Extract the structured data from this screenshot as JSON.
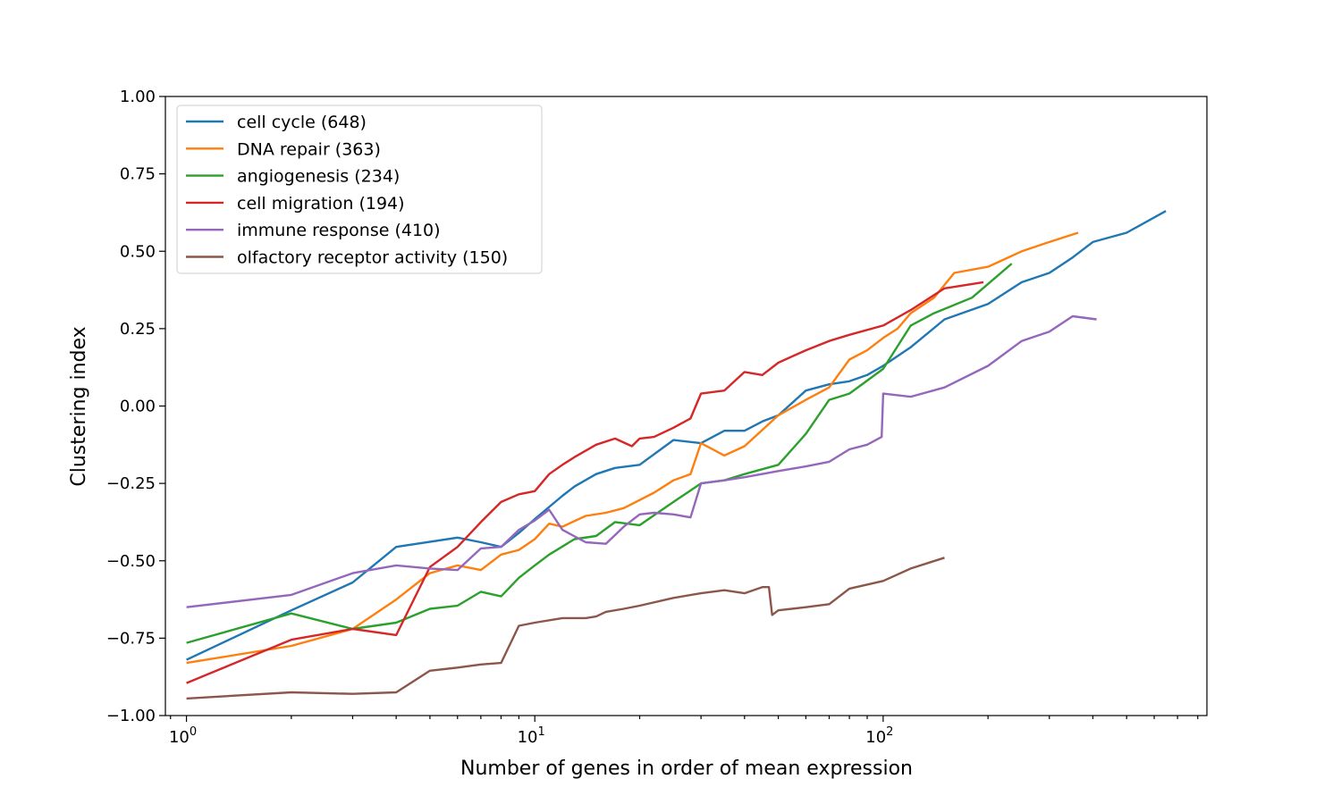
{
  "chart_data": {
    "type": "line",
    "title": "",
    "xlabel": "Number of genes in order of mean expression",
    "ylabel": "Clustering index",
    "xscale": "log",
    "xlim": [
      0.87,
      850
    ],
    "ylim": [
      -1.0,
      1.0
    ],
    "xticks": [
      {
        "value": 1,
        "base": "10",
        "exp": "0"
      },
      {
        "value": 10,
        "base": "10",
        "exp": "1"
      },
      {
        "value": 100,
        "base": "10",
        "exp": "2"
      }
    ],
    "yticks": [
      {
        "value": 1.0,
        "label": "1.00"
      },
      {
        "value": 0.75,
        "label": "0.75"
      },
      {
        "value": 0.5,
        "label": "0.50"
      },
      {
        "value": 0.25,
        "label": "0.25"
      },
      {
        "value": 0.0,
        "label": "0.00"
      },
      {
        "value": -0.25,
        "label": "−0.25"
      },
      {
        "value": -0.5,
        "label": "−0.50"
      },
      {
        "value": -0.75,
        "label": "−0.75"
      },
      {
        "value": -1.0,
        "label": "−1.00"
      }
    ],
    "grid": false,
    "legend_position": "upper-left",
    "series": [
      {
        "name": "cell cycle (648)",
        "color": "#1f77b4",
        "x": [
          1,
          2,
          3,
          4,
          6,
          7,
          8,
          9,
          10,
          12,
          13,
          15,
          17,
          20,
          25,
          30,
          35,
          40,
          45,
          50,
          60,
          70,
          80,
          90,
          100,
          120,
          150,
          200,
          250,
          300,
          350,
          400,
          500,
          648
        ],
        "y": [
          -0.82,
          -0.66,
          -0.57,
          -0.455,
          -0.425,
          -0.44,
          -0.455,
          -0.41,
          -0.365,
          -0.29,
          -0.26,
          -0.22,
          -0.2,
          -0.19,
          -0.11,
          -0.12,
          -0.08,
          -0.08,
          -0.05,
          -0.03,
          0.05,
          0.07,
          0.08,
          0.1,
          0.13,
          0.19,
          0.28,
          0.33,
          0.4,
          0.43,
          0.48,
          0.53,
          0.56,
          0.63
        ]
      },
      {
        "name": "DNA repair (363)",
        "color": "#ff7f0e",
        "x": [
          1,
          2,
          3,
          4,
          5,
          6,
          7,
          8,
          9,
          10,
          11,
          12,
          14,
          16,
          18,
          22,
          25,
          28,
          30,
          35,
          40,
          50,
          60,
          70,
          80,
          90,
          100,
          110,
          120,
          140,
          160,
          200,
          250,
          300,
          363
        ],
        "y": [
          -0.83,
          -0.775,
          -0.72,
          -0.625,
          -0.54,
          -0.515,
          -0.53,
          -0.48,
          -0.465,
          -0.43,
          -0.38,
          -0.39,
          -0.355,
          -0.345,
          -0.33,
          -0.28,
          -0.24,
          -0.22,
          -0.12,
          -0.16,
          -0.13,
          -0.03,
          0.02,
          0.06,
          0.15,
          0.18,
          0.22,
          0.25,
          0.3,
          0.35,
          0.43,
          0.45,
          0.5,
          0.53,
          0.56
        ]
      },
      {
        "name": "angiogenesis (234)",
        "color": "#2ca02c",
        "x": [
          1,
          2,
          3,
          4,
          5,
          6,
          7,
          8,
          9,
          10,
          11,
          13,
          15,
          17,
          20,
          25,
          30,
          35,
          40,
          50,
          60,
          70,
          80,
          100,
          120,
          140,
          180,
          234
        ],
        "y": [
          -0.765,
          -0.67,
          -0.72,
          -0.7,
          -0.655,
          -0.645,
          -0.6,
          -0.615,
          -0.555,
          -0.515,
          -0.48,
          -0.43,
          -0.42,
          -0.375,
          -0.385,
          -0.31,
          -0.25,
          -0.24,
          -0.22,
          -0.19,
          -0.09,
          0.02,
          0.04,
          0.12,
          0.26,
          0.3,
          0.35,
          0.46
        ]
      },
      {
        "name": "cell migration (194)",
        "color": "#d62728",
        "x": [
          1,
          2,
          3,
          4,
          5,
          6,
          7,
          8,
          9,
          10,
          11,
          12,
          13,
          15,
          17,
          19,
          20,
          22,
          25,
          28,
          30,
          35,
          40,
          45,
          50,
          60,
          70,
          80,
          100,
          120,
          150,
          194
        ],
        "y": [
          -0.895,
          -0.755,
          -0.72,
          -0.74,
          -0.52,
          -0.455,
          -0.375,
          -0.31,
          -0.285,
          -0.275,
          -0.22,
          -0.19,
          -0.165,
          -0.125,
          -0.105,
          -0.13,
          -0.105,
          -0.1,
          -0.07,
          -0.04,
          0.04,
          0.05,
          0.11,
          0.1,
          0.14,
          0.18,
          0.21,
          0.23,
          0.26,
          0.31,
          0.38,
          0.4
        ]
      },
      {
        "name": "immune response (410)",
        "color": "#9467bd",
        "x": [
          1,
          2,
          3,
          4,
          5,
          6,
          7,
          8,
          9,
          10,
          11,
          12,
          14,
          16,
          18,
          20,
          22,
          25,
          28,
          30,
          35,
          40,
          50,
          60,
          70,
          80,
          90,
          99,
          100,
          120,
          150,
          200,
          250,
          300,
          350,
          410
        ],
        "y": [
          -0.65,
          -0.61,
          -0.54,
          -0.515,
          -0.525,
          -0.53,
          -0.46,
          -0.455,
          -0.4,
          -0.37,
          -0.335,
          -0.4,
          -0.44,
          -0.445,
          -0.39,
          -0.35,
          -0.345,
          -0.35,
          -0.36,
          -0.25,
          -0.24,
          -0.23,
          -0.21,
          -0.195,
          -0.18,
          -0.14,
          -0.125,
          -0.1,
          0.04,
          0.03,
          0.06,
          0.13,
          0.21,
          0.24,
          0.29,
          0.28
        ]
      },
      {
        "name": "olfactory receptor activity (150)",
        "color": "#8c564b",
        "x": [
          1,
          2,
          3,
          4,
          5,
          6,
          7,
          8,
          9,
          10,
          12,
          14,
          15,
          16,
          18,
          20,
          25,
          30,
          35,
          40,
          45,
          47,
          48,
          50,
          60,
          70,
          80,
          100,
          120,
          150
        ],
        "y": [
          -0.945,
          -0.925,
          -0.93,
          -0.925,
          -0.855,
          -0.845,
          -0.835,
          -0.83,
          -0.71,
          -0.7,
          -0.685,
          -0.685,
          -0.68,
          -0.665,
          -0.655,
          -0.645,
          -0.62,
          -0.605,
          -0.595,
          -0.605,
          -0.585,
          -0.585,
          -0.675,
          -0.66,
          -0.65,
          -0.64,
          -0.59,
          -0.565,
          -0.525,
          -0.49
        ]
      }
    ]
  }
}
